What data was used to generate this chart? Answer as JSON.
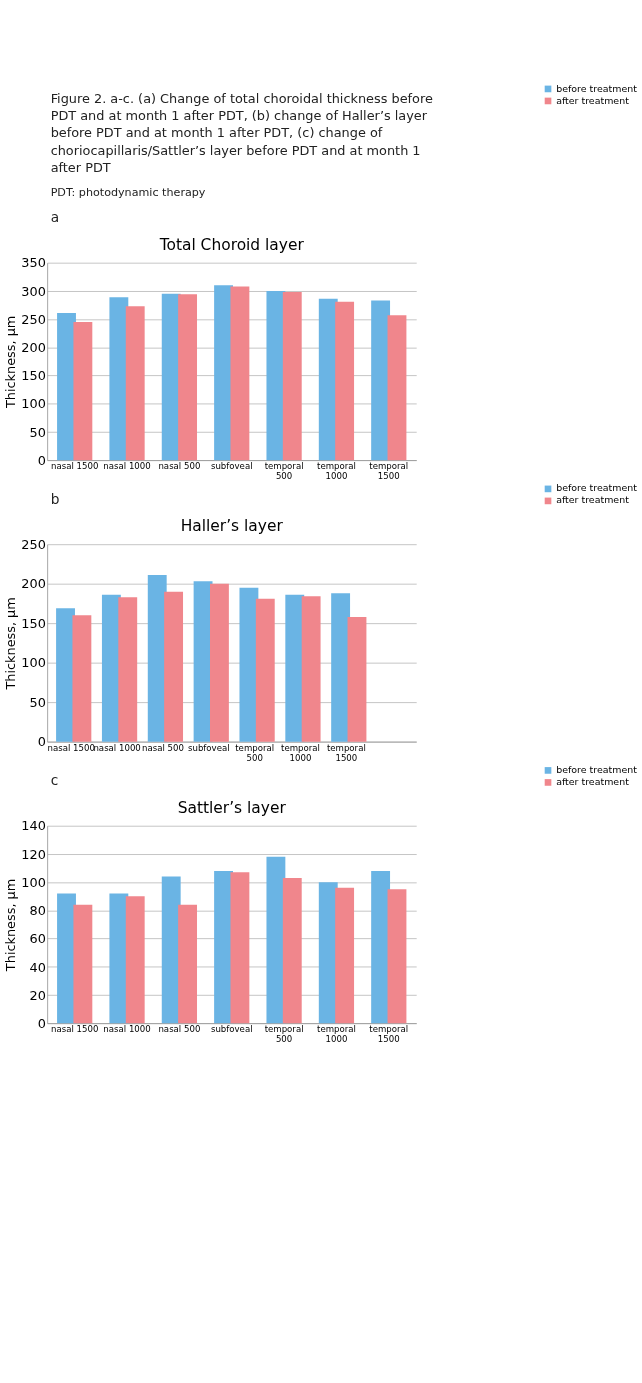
{
  "chart_data": [
    {
      "type": "bar",
      "title": "Total Choroid layer",
      "ylabel": "Thickness, µm",
      "annotations": [
        "Figure 2. a-c. (a) Change of total choroidal thickness before PDT and at month 1 after PDT, (b) change of Haller’s layer before PDT and at month 1 after PDT, (c) change of choriocapillaris/Sattler’s layer before PDT and at month 1 after PDT",
        "PDT: photodynamic therapy",
        "a"
      ],
      "categories": [
        "nasal 1500",
        "nasal 1000",
        "nasal 500",
        "subfoveal",
        "temporal 500",
        "temporal 1000",
        "temporal 1500"
      ],
      "series": [
        {
          "name": "before treatment",
          "color": "#6ab4e4",
          "values": [
            261,
            289,
            295,
            310,
            300,
            286,
            283
          ]
        },
        {
          "name": "after treatment",
          "color": "#f0868c",
          "values": [
            245,
            273,
            294,
            308,
            298,
            281,
            257
          ]
        }
      ],
      "ylim": [
        0,
        350
      ],
      "yticks": [
        0,
        50,
        100,
        150,
        200,
        250,
        300,
        350
      ],
      "grid": "y",
      "legend": "right"
    },
    {
      "type": "bar",
      "title": "Haller’s layer",
      "ylabel": "Thickness, µm",
      "annotations": [
        "b"
      ],
      "categories": [
        "nasal 1500",
        "nasal 1000",
        "nasal 500",
        "subfoveal",
        "temporal 500",
        "temporal 1000",
        "temporal 1500",
        null
      ],
      "series": [
        {
          "name": "before treatment",
          "color": "#6ab4e4",
          "values": [
            169,
            186,
            211,
            203,
            195,
            186,
            188,
            null
          ]
        },
        {
          "name": "after treatment",
          "color": "#f0868c",
          "values": [
            160,
            183,
            190,
            200,
            181,
            184,
            158,
            null
          ]
        }
      ],
      "ylim": [
        0,
        250
      ],
      "yticks": [
        0,
        50,
        100,
        150,
        200,
        250
      ],
      "grid": "y",
      "legend": "right"
    },
    {
      "type": "bar",
      "title": "Sattler’s layer",
      "ylabel": "Thickness, µm",
      "annotations": [
        "c"
      ],
      "categories": [
        "nasal 1500",
        "nasal 1000",
        "nasal 500",
        "subfoveal",
        "temporal 500",
        "temporal 1000",
        "temporal 1500"
      ],
      "series": [
        {
          "name": "before treatment",
          "color": "#6ab4e4",
          "values": [
            92,
            92,
            104,
            108,
            118,
            100,
            108
          ]
        },
        {
          "name": "after treatment",
          "color": "#f0868c",
          "values": [
            84,
            90,
            84,
            107,
            103,
            96,
            95
          ]
        }
      ],
      "ylim": [
        0,
        140
      ],
      "yticks": [
        0,
        20,
        40,
        60,
        80,
        100,
        120,
        140
      ],
      "grid": "y",
      "legend": "right"
    }
  ]
}
